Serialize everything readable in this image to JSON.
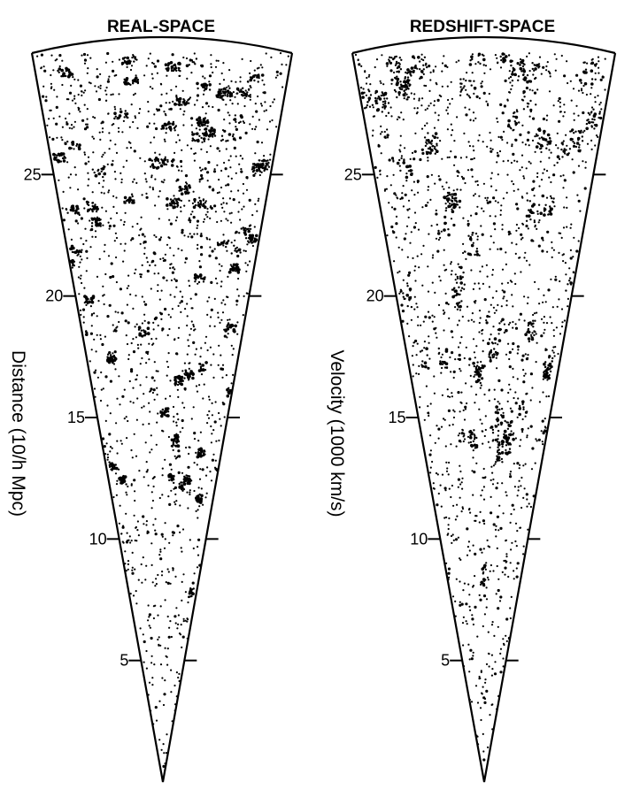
{
  "chart_data": [
    {
      "type": "scatter",
      "title": "REAL-SPACE",
      "ylabel": "Distance (10/h Mpc)",
      "xlabel": "",
      "ticks": [
        5,
        10,
        15,
        20,
        25
      ],
      "ylim": [
        0,
        30
      ],
      "grid": false,
      "seed": 7
    },
    {
      "type": "scatter",
      "title": "REDSHIFT-SPACE",
      "ylabel": "Velocity (1000 km/s)",
      "xlabel": "",
      "ticks": [
        5,
        10,
        15,
        20,
        25
      ],
      "ylim": [
        0,
        30
      ],
      "grid": false,
      "seed": 19
    }
  ]
}
